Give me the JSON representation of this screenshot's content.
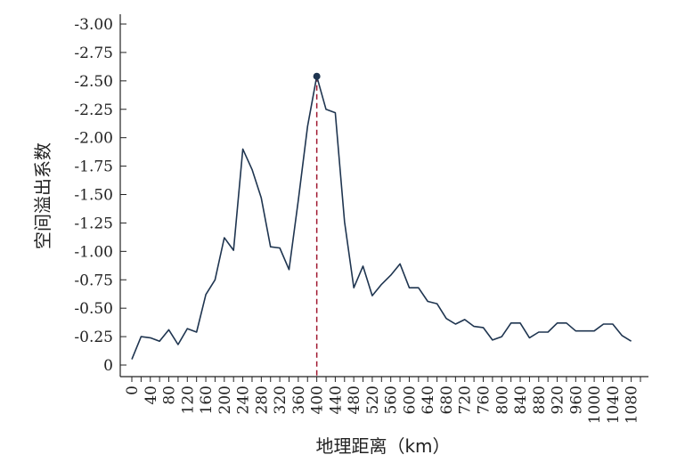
{
  "colors": {
    "line": "#1f3550",
    "axis": "#222222",
    "marker": "#a01830",
    "peak": "#1f3550"
  },
  "chart_data": {
    "type": "line",
    "title": "",
    "xlabel": "地理距离（km）",
    "ylabel": "空间溢出系数",
    "xlim": [
      0,
      1100
    ],
    "ylim": [
      0,
      -3.0
    ],
    "y_ticks": [
      0,
      -0.25,
      -0.5,
      -0.75,
      -1.0,
      -1.25,
      -1.5,
      -1.75,
      -2.0,
      -2.25,
      -2.5,
      -2.75,
      -3.0
    ],
    "y_tick_labels": [
      "0",
      "-0.25",
      "-0.50",
      "-0.75",
      "-1.00",
      "-1.25",
      "-1.50",
      "-1.75",
      "-2.00",
      "-2.25",
      "-2.50",
      "-2.75",
      "-3.00"
    ],
    "x_ticks": [
      0,
      40,
      80,
      120,
      160,
      200,
      240,
      280,
      320,
      360,
      400,
      440,
      480,
      520,
      560,
      600,
      640,
      680,
      720,
      760,
      800,
      840,
      880,
      920,
      960,
      1000,
      1040,
      1080
    ],
    "x_tick_labels": [
      "0",
      "40",
      "80",
      "120",
      "160",
      "200",
      "240",
      "280",
      "320",
      "360",
      "400",
      "440",
      "480",
      "520",
      "560",
      "600",
      "640",
      "680",
      "720",
      "760",
      "800",
      "840",
      "880",
      "920",
      "960",
      "1000",
      "1040",
      "1080"
    ],
    "x": [
      0,
      20,
      40,
      60,
      80,
      100,
      120,
      140,
      160,
      180,
      200,
      220,
      240,
      260,
      280,
      300,
      320,
      340,
      360,
      380,
      400,
      420,
      440,
      460,
      480,
      500,
      520,
      540,
      560,
      580,
      600,
      620,
      640,
      660,
      680,
      700,
      720,
      740,
      760,
      780,
      800,
      820,
      840,
      860,
      880,
      900,
      920,
      940,
      960,
      980,
      1000,
      1020,
      1040,
      1060,
      1080
    ],
    "values": [
      -0.05,
      -0.25,
      -0.24,
      -0.21,
      -0.31,
      -0.18,
      -0.32,
      -0.29,
      -0.62,
      -0.75,
      -1.12,
      -1.01,
      -1.9,
      -1.72,
      -1.47,
      -1.04,
      -1.03,
      -0.84,
      -1.45,
      -2.1,
      -2.54,
      -2.25,
      -2.22,
      -1.26,
      -0.68,
      -0.87,
      -0.61,
      -0.71,
      -0.79,
      -0.89,
      -0.68,
      -0.68,
      -0.56,
      -0.54,
      -0.41,
      -0.36,
      -0.4,
      -0.34,
      -0.33,
      -0.22,
      -0.25,
      -0.37,
      -0.37,
      -0.24,
      -0.29,
      -0.29,
      -0.37,
      -0.37,
      -0.3,
      -0.3,
      -0.3,
      -0.36,
      -0.36,
      -0.26,
      -0.21
    ],
    "peak": {
      "x": 400,
      "y": -2.54
    },
    "reference_line": {
      "x": 400,
      "style": "dashed"
    }
  }
}
